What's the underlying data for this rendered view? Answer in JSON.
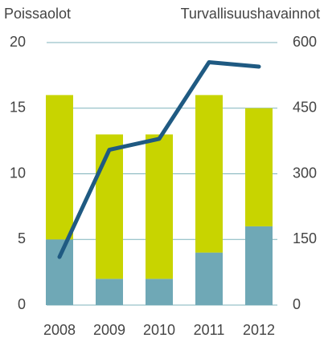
{
  "chart_data": {
    "type": "bar",
    "y_label": "Poissaolot",
    "y2_label": "Turvallisuushavainnot",
    "categories": [
      "2008",
      "2009",
      "2010",
      "2011",
      "2012"
    ],
    "stacked": true,
    "series": [
      {
        "color": "#6fa8b6",
        "values": [
          5,
          2,
          2,
          4,
          6
        ]
      },
      {
        "color": "#c8d400",
        "values": [
          11,
          11,
          11,
          12,
          9
        ]
      },
      {
        "type": "line",
        "axis": "y2",
        "color": "#1f5a82",
        "values": [
          110,
          355,
          380,
          555,
          545
        ]
      }
    ],
    "ylim": [
      0,
      20
    ],
    "yticks": [
      0,
      5,
      10,
      15,
      20
    ],
    "y2lim": [
      0,
      600
    ],
    "y2ticks": [
      0,
      150,
      300,
      450,
      600
    ],
    "grid": true
  }
}
